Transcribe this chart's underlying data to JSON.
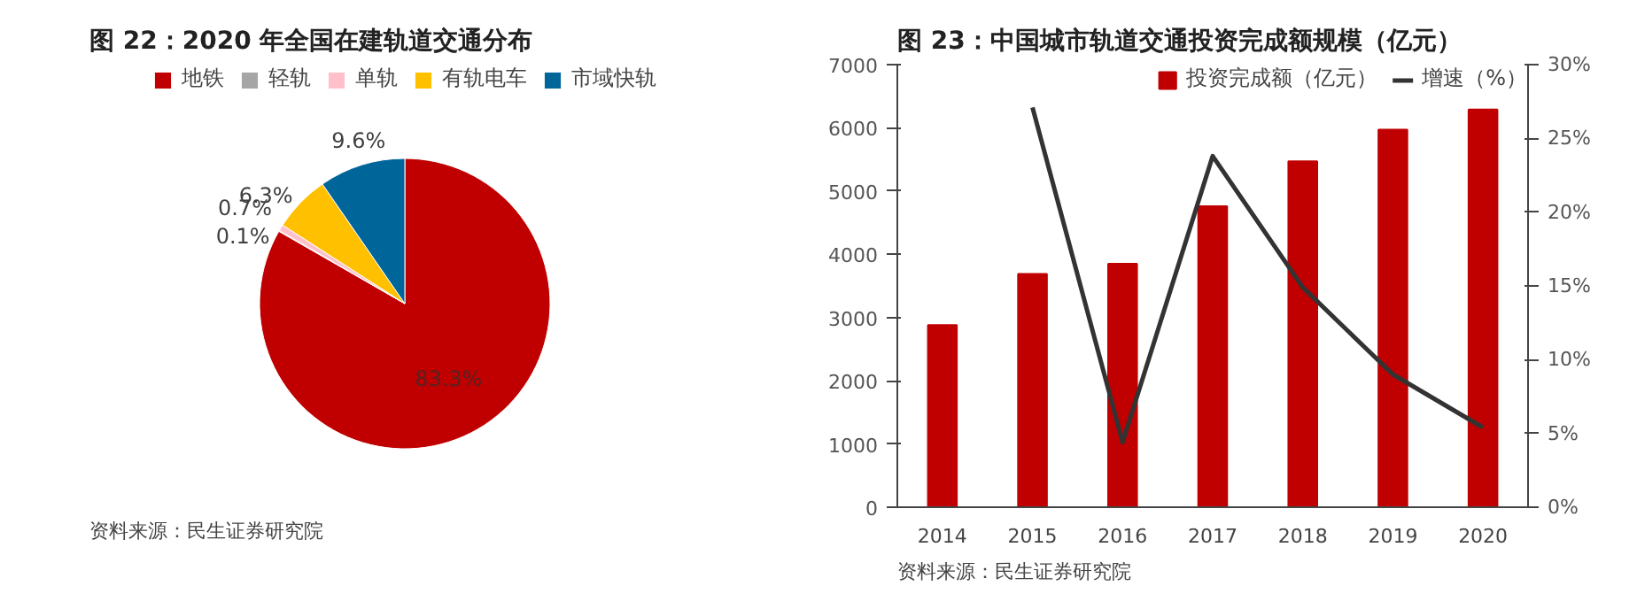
{
  "chart_data": [
    {
      "type": "pie",
      "title": "图 22：2020 年全国在建轨道交通分布",
      "categories": [
        "地铁",
        "轻轨",
        "单轨",
        "有轨电车",
        "市域快轨"
      ],
      "values": [
        83.3,
        0.1,
        0.7,
        6.3,
        9.6
      ],
      "colors": [
        "#c00000",
        "#a6a6a6",
        "#ffc0cb",
        "#ffc000",
        "#006699"
      ],
      "value_labels": [
        "83.3%",
        "0.1%",
        "0.7%",
        "6.3%",
        "9.6%"
      ],
      "legend": "top",
      "annotations": [
        "资料来源：民生证券研究院"
      ]
    },
    {
      "type": "bar",
      "title": "图 23：中国城市轨道交通投资完成额规模（亿元）",
      "categories": [
        "2014",
        "2015",
        "2016",
        "2017",
        "2018",
        "2019",
        "2020"
      ],
      "series": [
        {
          "name": "投资完成额（亿元）",
          "color": "#c00000",
          "values": [
            2880,
            3690,
            3850,
            4760,
            5470,
            5970,
            6290
          ]
        },
        {
          "name": "增速（%）",
          "type": "line",
          "axis": "y2",
          "color": "#333333",
          "values": [
            null,
            27.1,
            4.4,
            23.8,
            14.9,
            9.0,
            5.4
          ]
        }
      ],
      "ylim": [
        0,
        7000
      ],
      "yticks": [
        0,
        1000,
        2000,
        3000,
        4000,
        5000,
        6000,
        7000
      ],
      "y2lim": [
        0,
        30
      ],
      "y2ticks": [
        {
          "value": 0,
          "label": "0%"
        },
        {
          "value": 5,
          "label": "5%"
        },
        {
          "value": 10,
          "label": "10%"
        },
        {
          "value": 15,
          "label": "15%"
        },
        {
          "value": 20,
          "label": "20%"
        },
        {
          "value": 25,
          "label": "25%"
        },
        {
          "value": 30,
          "label": "30%"
        }
      ],
      "grid": false,
      "legend": "top right",
      "annotations": [
        "资料来源：民生证券研究院"
      ]
    }
  ]
}
